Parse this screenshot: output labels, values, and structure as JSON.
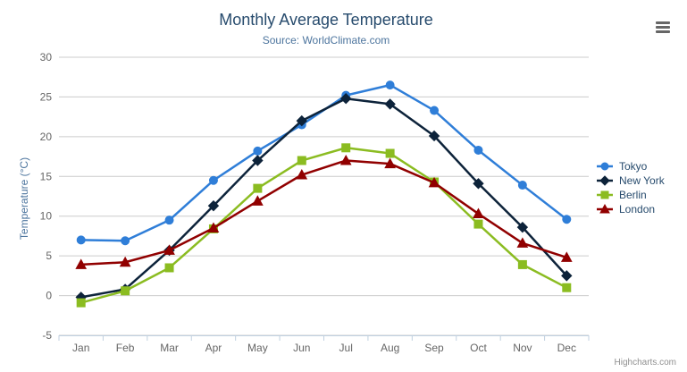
{
  "chart_data": {
    "type": "line",
    "title": "Monthly Average Temperature",
    "subtitle": "Source: WorldClimate.com",
    "xlabel": "",
    "ylabel": "Temperature (°C)",
    "categories": [
      "Jan",
      "Feb",
      "Mar",
      "Apr",
      "May",
      "Jun",
      "Jul",
      "Aug",
      "Sep",
      "Oct",
      "Nov",
      "Dec"
    ],
    "series": [
      {
        "name": "Tokyo",
        "color": "#2f7ed8",
        "marker": "circle",
        "values": [
          7.0,
          6.9,
          9.5,
          14.5,
          18.2,
          21.5,
          25.2,
          26.5,
          23.3,
          18.3,
          13.9,
          9.6
        ]
      },
      {
        "name": "New York",
        "color": "#0d233a",
        "marker": "diamond",
        "values": [
          -0.2,
          0.8,
          5.7,
          11.3,
          17.0,
          22.0,
          24.8,
          24.1,
          20.1,
          14.1,
          8.6,
          2.5
        ]
      },
      {
        "name": "Berlin",
        "color": "#8bbc21",
        "marker": "square",
        "values": [
          -0.9,
          0.6,
          3.5,
          8.4,
          13.5,
          17.0,
          18.6,
          17.9,
          14.3,
          9.0,
          3.9,
          1.0
        ]
      },
      {
        "name": "London",
        "color": "#910000",
        "marker": "triangle",
        "values": [
          3.9,
          4.2,
          5.7,
          8.5,
          11.9,
          15.2,
          17.0,
          16.6,
          14.2,
          10.3,
          6.6,
          4.8
        ]
      }
    ],
    "ylim": [
      -5,
      30
    ],
    "ytick_interval": 5,
    "yticks": [
      30,
      25,
      20,
      15,
      10,
      5,
      0,
      -5
    ],
    "grid": true,
    "legend_position": "right"
  },
  "credits": {
    "label": "Highcharts.com"
  },
  "colors": {
    "title": "#274b6d",
    "subtitle": "#4d759e",
    "axis_label": "#666666",
    "grid": "#cccccc",
    "axis_line": "#c0d0e0",
    "legend_text": "#274b6d",
    "menu_icon": "#666666",
    "credits": "#909090"
  }
}
